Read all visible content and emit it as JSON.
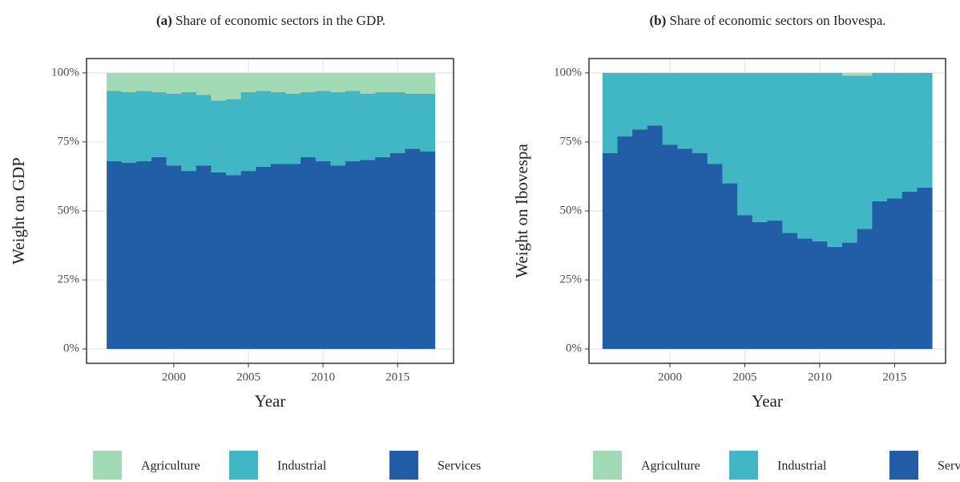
{
  "chart_data": [
    {
      "type": "stacked-bar",
      "tag": "(a)",
      "title": "Share of economic sectors in the GDP.",
      "x_label": "Year",
      "y_label": "Weight on GDP",
      "x": [
        1996,
        1997,
        1998,
        1999,
        2000,
        2001,
        2002,
        2003,
        2004,
        2005,
        2006,
        2007,
        2008,
        2009,
        2010,
        2011,
        2012,
        2013,
        2014,
        2015,
        2016,
        2017
      ],
      "series": [
        {
          "name": "Agriculture",
          "color": "#a1dab4",
          "values": [
            6.5,
            7,
            6.5,
            7,
            7.5,
            7,
            8,
            10,
            9.5,
            7,
            6.5,
            7,
            7.5,
            7,
            6.5,
            7,
            6.5,
            7.5,
            7,
            7,
            7.5,
            7.5
          ]
        },
        {
          "name": "Industrial",
          "color": "#41b6c4",
          "values": [
            25.5,
            25.5,
            25.5,
            23.5,
            26,
            28.5,
            25.5,
            26,
            27.5,
            28.5,
            27.5,
            26,
            25.5,
            23.5,
            25.5,
            26.5,
            25.5,
            24,
            23.5,
            22,
            20,
            21
          ]
        },
        {
          "name": "Services",
          "color": "#225ea8",
          "values": [
            68,
            67.5,
            68,
            69.5,
            66.5,
            64.5,
            66.5,
            64,
            63,
            64.5,
            66,
            67,
            67,
            69.5,
            68,
            66.5,
            68,
            68.5,
            69.5,
            71,
            72.5,
            71.5
          ]
        }
      ],
      "xlim": [
        1994.15,
        2018.75
      ],
      "xticks": [
        2000,
        2005,
        2010,
        2015
      ],
      "ylim": [
        -5.2,
        105.2
      ],
      "yticks": [
        {
          "value": 0,
          "label": "0%"
        },
        {
          "value": 25,
          "label": "25%"
        },
        {
          "value": 50,
          "label": "50%"
        },
        {
          "value": 75,
          "label": "75%"
        },
        {
          "value": 100,
          "label": "100%"
        }
      ],
      "grid": true,
      "legend": "bottom"
    },
    {
      "type": "stacked-bar",
      "tag": "(b)",
      "title": "Share of economic sectors on Ibovespa.",
      "x_label": "Year",
      "y_label": "Weight on Ibovespa",
      "x": [
        1996,
        1997,
        1998,
        1999,
        2000,
        2001,
        2002,
        2003,
        2004,
        2005,
        2006,
        2007,
        2008,
        2009,
        2010,
        2011,
        2012,
        2013,
        2014,
        2015,
        2016,
        2017
      ],
      "series": [
        {
          "name": "Agriculture",
          "color": "#a1dab4",
          "values": [
            0,
            0,
            0,
            0,
            0,
            0,
            0,
            0,
            0,
            0,
            0,
            0,
            0,
            0,
            0,
            0,
            1,
            1,
            0,
            0,
            0,
            0
          ]
        },
        {
          "name": "Industrial",
          "color": "#41b6c4",
          "values": [
            29,
            23,
            20.5,
            19,
            26,
            27.5,
            29,
            33,
            40,
            51.5,
            54,
            53.5,
            58,
            60,
            61,
            63,
            60.5,
            55.5,
            46.5,
            45.5,
            43,
            41.5
          ]
        },
        {
          "name": "Services",
          "color": "#225ea8",
          "values": [
            71,
            77,
            79.5,
            81,
            74,
            72.5,
            71,
            67,
            60,
            48.5,
            46,
            46.5,
            42,
            40,
            39,
            37,
            38.5,
            43.5,
            53.5,
            54.5,
            57,
            58.5
          ]
        }
      ],
      "xlim": [
        1994.6,
        2018.4
      ],
      "xticks": [
        2000,
        2005,
        2010,
        2015
      ],
      "ylim": [
        -5.2,
        105.2
      ],
      "yticks": [
        {
          "value": 0,
          "label": "0%"
        },
        {
          "value": 25,
          "label": "25%"
        },
        {
          "value": 50,
          "label": "50%"
        },
        {
          "value": 75,
          "label": "75%"
        },
        {
          "value": 100,
          "label": "100%"
        }
      ],
      "grid": true,
      "legend": "bottom"
    }
  ]
}
